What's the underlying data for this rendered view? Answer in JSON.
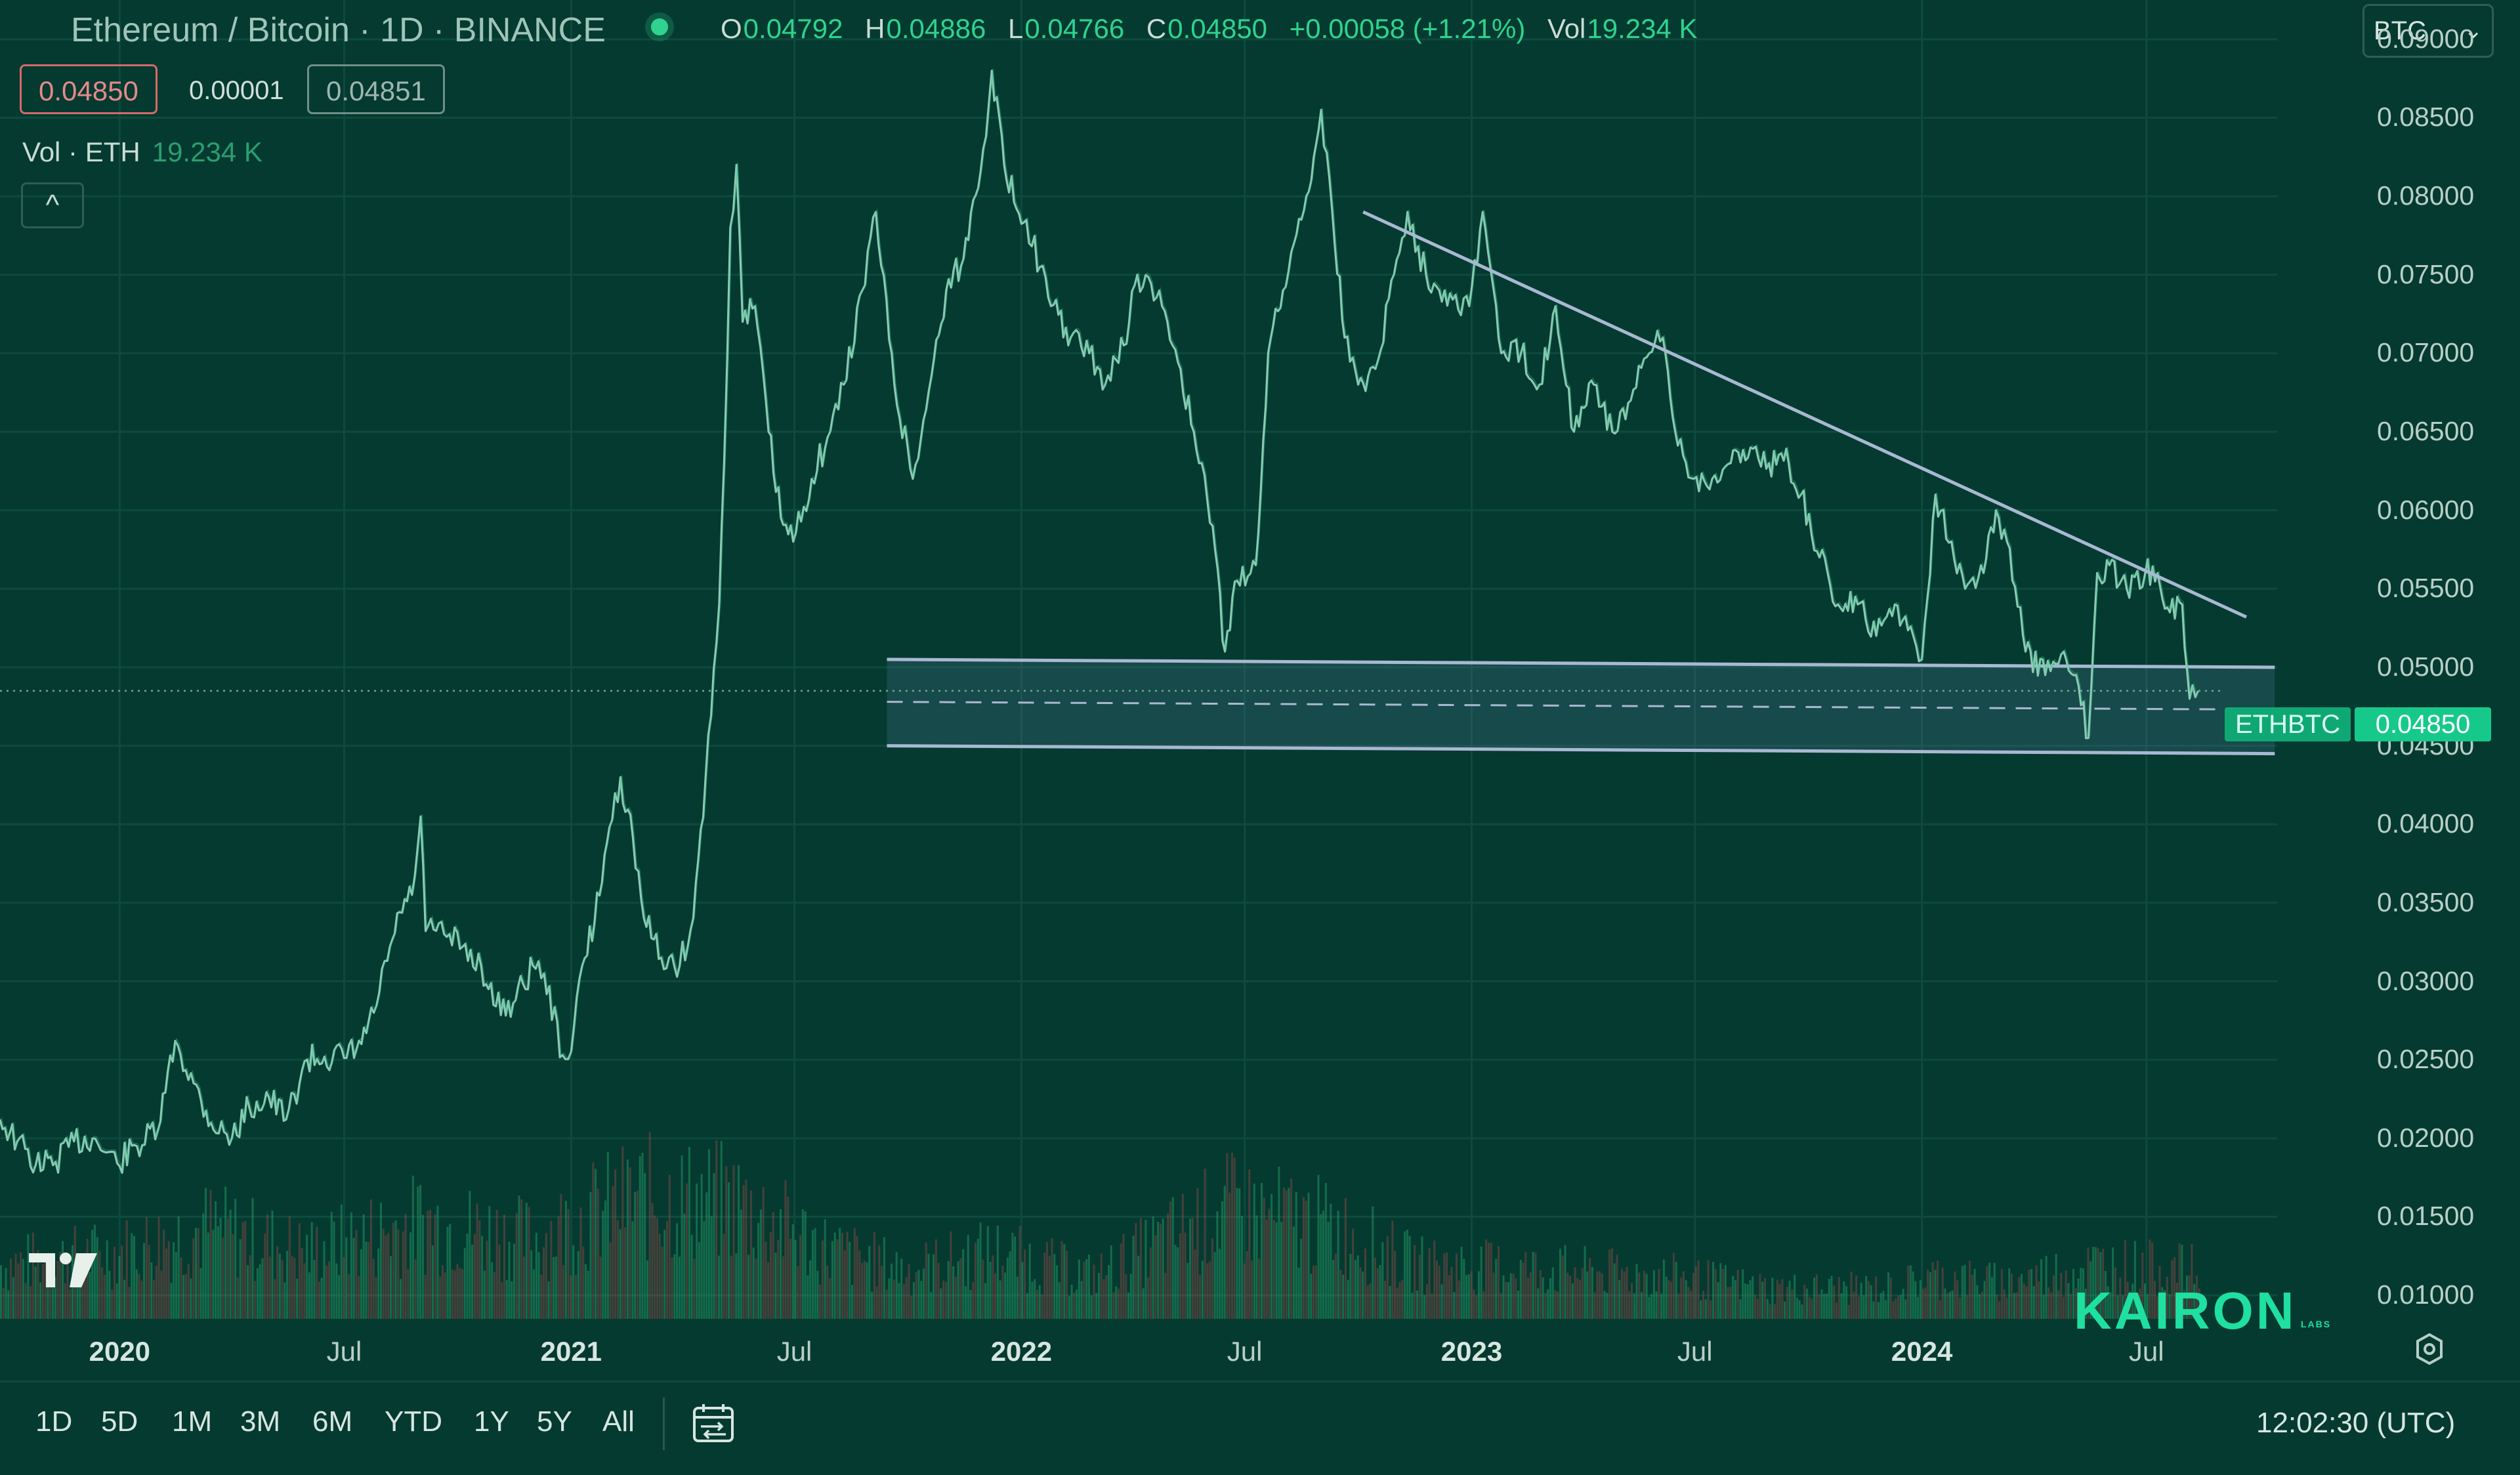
{
  "header": {
    "title": "Ethereum / Bitcoin · 1D · BINANCE",
    "open_key": "O",
    "open": "0.04792",
    "high_key": "H",
    "high": "0.04886",
    "low_key": "L",
    "low": "0.04766",
    "close_key": "C",
    "close": "0.04850",
    "change": "+0.00058 (+1.21%)",
    "vol_key": "Vol",
    "vol": "19.234 K",
    "bid": "0.04850",
    "spread": "0.00001",
    "ask": "0.04851",
    "vol_indicator": "Vol · ETH",
    "vol_indicator_value": "19.234 K",
    "collapse_glyph": "^",
    "currency": "BTC",
    "currency_chevron": "⌄"
  },
  "price_axis": {
    "symbol": "ETHBTC",
    "last_price": "0.04850",
    "ticks": [
      "0.09000",
      "0.08500",
      "0.08000",
      "0.07500",
      "0.07000",
      "0.06500",
      "0.06000",
      "0.05500",
      "0.05000",
      "0.04500",
      "0.04000",
      "0.03500",
      "0.03000",
      "0.02500",
      "0.02000",
      "0.01500",
      "0.01000"
    ]
  },
  "time_axis": {
    "ticks": [
      {
        "label": "2020",
        "year": true
      },
      {
        "label": "Jul",
        "year": false
      },
      {
        "label": "2021",
        "year": true
      },
      {
        "label": "Jul",
        "year": false
      },
      {
        "label": "2022",
        "year": true
      },
      {
        "label": "Jul",
        "year": false
      },
      {
        "label": "2023",
        "year": true
      },
      {
        "label": "Jul",
        "year": false
      },
      {
        "label": "2024",
        "year": true
      },
      {
        "label": "Jul",
        "year": false
      }
    ]
  },
  "branding": {
    "logo_text": "KAIRON",
    "logo_sub": "LABS"
  },
  "bottom_bar": {
    "ranges": [
      "1D",
      "5D",
      "1M",
      "3M",
      "6M",
      "YTD",
      "1Y",
      "5Y",
      "All"
    ],
    "time": "12:02:30 (UTC)"
  },
  "chart_data": {
    "type": "line",
    "title": "Ethereum / Bitcoin · 1D · BINANCE",
    "ylabel": "",
    "ylim": [
      0.0085,
      0.0925
    ],
    "xlim": [
      "2019-09-26",
      "2024-10-15"
    ],
    "y_scale": "linear",
    "grid": true,
    "series": [
      {
        "values": [
          [
            "2019-09-26",
            0.0212
          ],
          [
            "2019-10-10",
            0.0198
          ],
          [
            "2019-10-25",
            0.0183
          ],
          [
            "2019-11-10",
            0.0185
          ],
          [
            "2019-11-25",
            0.0198
          ],
          [
            "2019-12-10",
            0.02
          ],
          [
            "2019-12-30",
            0.0184
          ],
          [
            "2020-01-15",
            0.0195
          ],
          [
            "2020-02-01",
            0.0205
          ],
          [
            "2020-02-15",
            0.0262
          ],
          [
            "2020-03-01",
            0.0235
          ],
          [
            "2020-03-15",
            0.021
          ],
          [
            "2020-04-01",
            0.02
          ],
          [
            "2020-04-15",
            0.022
          ],
          [
            "2020-05-01",
            0.0226
          ],
          [
            "2020-05-15",
            0.0212
          ],
          [
            "2020-06-01",
            0.025
          ],
          [
            "2020-06-15",
            0.0252
          ],
          [
            "2020-07-01",
            0.0251
          ],
          [
            "2020-07-15",
            0.026
          ],
          [
            "2020-07-25",
            0.028
          ],
          [
            "2020-08-05",
            0.0313
          ],
          [
            "2020-08-15",
            0.0344
          ],
          [
            "2020-08-25",
            0.0355
          ],
          [
            "2020-09-01",
            0.0405
          ],
          [
            "2020-09-05",
            0.0332
          ],
          [
            "2020-09-20",
            0.033
          ],
          [
            "2020-10-05",
            0.0322
          ],
          [
            "2020-10-20",
            0.031
          ],
          [
            "2020-11-01",
            0.0284
          ],
          [
            "2020-11-15",
            0.0286
          ],
          [
            "2020-12-01",
            0.031
          ],
          [
            "2020-12-10",
            0.0305
          ],
          [
            "2020-12-25",
            0.0253
          ],
          [
            "2021-01-01",
            0.0255
          ],
          [
            "2021-01-10",
            0.031
          ],
          [
            "2021-01-20",
            0.0338
          ],
          [
            "2021-02-01",
            0.0398
          ],
          [
            "2021-02-10",
            0.043
          ],
          [
            "2021-02-20",
            0.0392
          ],
          [
            "2021-03-01",
            0.034
          ],
          [
            "2021-03-15",
            0.0315
          ],
          [
            "2021-03-30",
            0.031
          ],
          [
            "2021-04-10",
            0.034
          ],
          [
            "2021-04-20",
            0.043
          ],
          [
            "2021-05-01",
            0.054
          ],
          [
            "2021-05-05",
            0.063
          ],
          [
            "2021-05-10",
            0.078
          ],
          [
            "2021-05-15",
            0.082
          ],
          [
            "2021-05-20",
            0.072
          ],
          [
            "2021-05-30",
            0.073
          ],
          [
            "2021-06-10",
            0.065
          ],
          [
            "2021-06-20",
            0.0595
          ],
          [
            "2021-06-30",
            0.058
          ],
          [
            "2021-07-15",
            0.062
          ],
          [
            "2021-07-30",
            0.065
          ],
          [
            "2021-08-10",
            0.068
          ],
          [
            "2021-08-25",
            0.074
          ],
          [
            "2021-09-05",
            0.079
          ],
          [
            "2021-09-20",
            0.068
          ],
          [
            "2021-10-05",
            0.062
          ],
          [
            "2021-10-20",
            0.0685
          ],
          [
            "2021-11-01",
            0.074
          ],
          [
            "2021-11-15",
            0.076
          ],
          [
            "2021-12-01",
            0.083
          ],
          [
            "2021-12-08",
            0.088
          ],
          [
            "2021-12-20",
            0.081
          ],
          [
            "2022-01-05",
            0.0785
          ],
          [
            "2022-01-25",
            0.073
          ],
          [
            "2022-02-10",
            0.071
          ],
          [
            "2022-02-25",
            0.07
          ],
          [
            "2022-03-10",
            0.068
          ],
          [
            "2022-03-25",
            0.0705
          ],
          [
            "2022-04-05",
            0.075
          ],
          [
            "2022-04-25",
            0.073
          ],
          [
            "2022-05-10",
            0.069
          ],
          [
            "2022-05-25",
            0.063
          ],
          [
            "2022-06-05",
            0.059
          ],
          [
            "2022-06-15",
            0.051
          ],
          [
            "2022-06-25",
            0.0555
          ],
          [
            "2022-07-10",
            0.0565
          ],
          [
            "2022-07-20",
            0.07
          ],
          [
            "2022-08-01",
            0.074
          ],
          [
            "2022-08-10",
            0.077
          ],
          [
            "2022-08-20",
            0.08
          ],
          [
            "2022-09-01",
            0.0855
          ],
          [
            "2022-09-10",
            0.079
          ],
          [
            "2022-09-20",
            0.071
          ],
          [
            "2022-10-01",
            0.068
          ],
          [
            "2022-10-15",
            0.069
          ],
          [
            "2022-10-30",
            0.075
          ],
          [
            "2022-11-10",
            0.079
          ],
          [
            "2022-11-25",
            0.075
          ],
          [
            "2022-12-10",
            0.074
          ],
          [
            "2022-12-30",
            0.073
          ],
          [
            "2023-01-10",
            0.079
          ],
          [
            "2023-01-25",
            0.07
          ],
          [
            "2023-02-10",
            0.07
          ],
          [
            "2023-02-25",
            0.068
          ],
          [
            "2023-03-10",
            0.073
          ],
          [
            "2023-03-25",
            0.065
          ],
          [
            "2023-04-10",
            0.068
          ],
          [
            "2023-04-25",
            0.065
          ],
          [
            "2023-05-10",
            0.067
          ],
          [
            "2023-05-25",
            0.07
          ],
          [
            "2023-06-05",
            0.071
          ],
          [
            "2023-06-15",
            0.065
          ],
          [
            "2023-06-30",
            0.062
          ],
          [
            "2023-07-15",
            0.062
          ],
          [
            "2023-07-30",
            0.063
          ],
          [
            "2023-08-15",
            0.064
          ],
          [
            "2023-08-30",
            0.063
          ],
          [
            "2023-09-15",
            0.063
          ],
          [
            "2023-09-25",
            0.061
          ],
          [
            "2023-10-10",
            0.057
          ],
          [
            "2023-10-25",
            0.054
          ],
          [
            "2023-11-10",
            0.054
          ],
          [
            "2023-11-25",
            0.052
          ],
          [
            "2023-12-10",
            0.054
          ],
          [
            "2023-12-25",
            0.052
          ],
          [
            "2024-01-01",
            0.0505
          ],
          [
            "2024-01-12",
            0.061
          ],
          [
            "2024-01-25",
            0.058
          ],
          [
            "2024-02-05",
            0.055
          ],
          [
            "2024-02-20",
            0.056
          ],
          [
            "2024-03-01",
            0.06
          ],
          [
            "2024-03-10",
            0.058
          ],
          [
            "2024-03-25",
            0.051
          ],
          [
            "2024-04-10",
            0.0495
          ],
          [
            "2024-04-25",
            0.051
          ],
          [
            "2024-05-05",
            0.0495
          ],
          [
            "2024-05-15",
            0.0455
          ],
          [
            "2024-05-22",
            0.056
          ],
          [
            "2024-06-01",
            0.0565
          ],
          [
            "2024-06-15",
            0.055
          ],
          [
            "2024-06-30",
            0.056
          ],
          [
            "2024-07-10",
            0.056
          ],
          [
            "2024-07-20",
            0.0535
          ],
          [
            "2024-07-30",
            0.054
          ],
          [
            "2024-08-05",
            0.048
          ],
          [
            "2024-08-12",
            0.0485
          ]
        ]
      }
    ],
    "volume": [
      [
        "2019-10-01",
        0.45
      ],
      [
        "2020-01-01",
        0.55
      ],
      [
        "2020-03-12",
        0.75
      ],
      [
        "2020-06-01",
        0.55
      ],
      [
        "2020-09-01",
        0.8
      ],
      [
        "2020-12-01",
        0.65
      ],
      [
        "2021-01-15",
        0.85
      ],
      [
        "2021-02-25",
        1.0
      ],
      [
        "2021-05-15",
        0.95
      ],
      [
        "2021-08-01",
        0.55
      ],
      [
        "2021-10-01",
        0.4
      ],
      [
        "2021-12-08",
        0.55
      ],
      [
        "2022-03-01",
        0.35
      ],
      [
        "2022-06-15",
        0.9
      ],
      [
        "2022-09-10",
        0.75
      ],
      [
        "2022-11-15",
        0.45
      ],
      [
        "2023-03-10",
        0.4
      ],
      [
        "2023-06-15",
        0.35
      ],
      [
        "2023-09-01",
        0.25
      ],
      [
        "2023-12-01",
        0.25
      ],
      [
        "2024-01-12",
        0.35
      ],
      [
        "2024-03-05",
        0.3
      ],
      [
        "2024-05-22",
        0.45
      ],
      [
        "2024-08-05",
        0.4
      ]
    ],
    "annotations": {
      "trendline": [
        [
          "2022-10-05",
          0.079
        ],
        [
          "2024-09-20",
          0.0532
        ]
      ],
      "support_zone": {
        "from": "2021-09-14",
        "to": "2024-10-13",
        "top": [
          0.0505,
          0.05
        ],
        "bottom": [
          0.045,
          0.0445
        ],
        "mid": [
          0.0478,
          0.0473
        ]
      },
      "last_price_line": 0.0485
    }
  }
}
